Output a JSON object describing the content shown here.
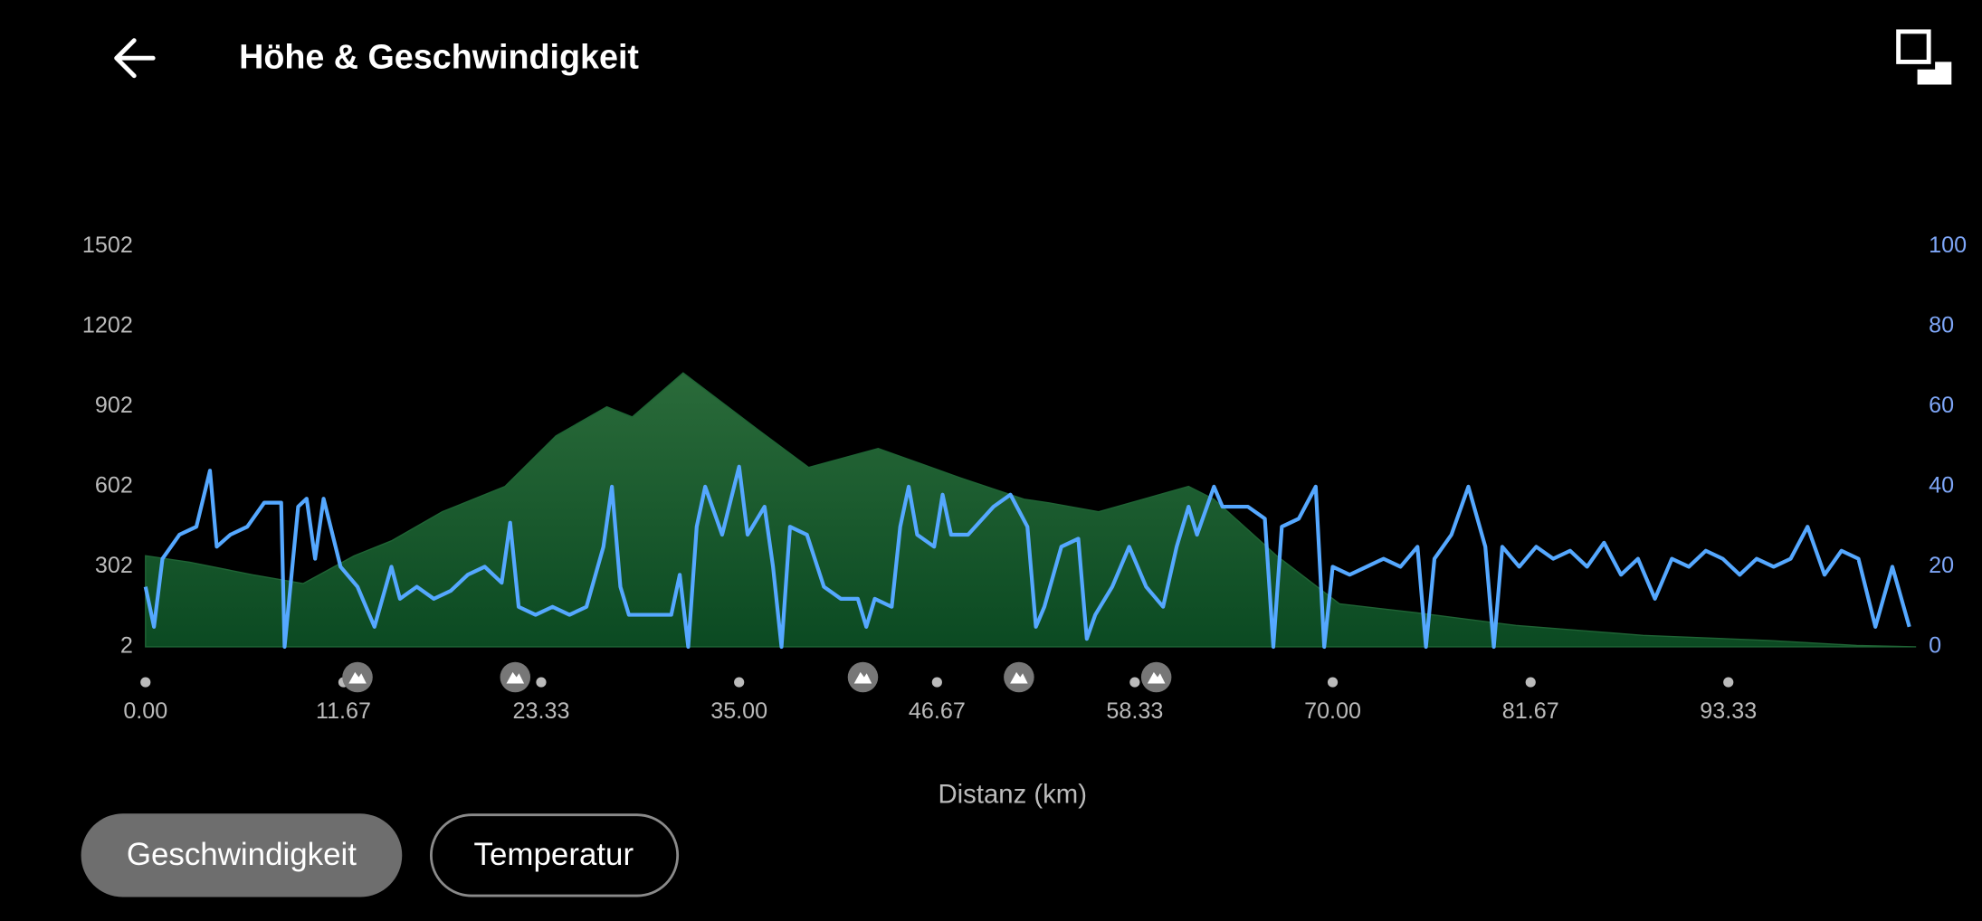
{
  "header": {
    "title": "Höhe & Geschwindigkeit"
  },
  "chart_data": {
    "type": "line",
    "x_label": "Distanz (km)",
    "xlim": [
      0,
      104.4
    ],
    "xticks": [
      {
        "value": 0,
        "label": "0.00"
      },
      11.67,
      23.33,
      {
        "value": 35,
        "label": "35.00"
      },
      46.67,
      58.33,
      {
        "value": 70,
        "label": "70.00"
      },
      81.67,
      93.33
    ],
    "ylim": [
      2,
      1502
    ],
    "yticks": [
      2,
      302,
      602,
      902,
      1202,
      1502
    ],
    "y2lim": [
      0,
      100
    ],
    "y2ticks": [
      0,
      20,
      40,
      60,
      80,
      100
    ],
    "markers": [
      12.5,
      21.8,
      42.3,
      51.5,
      59.6
    ],
    "series": [
      {
        "type": "area",
        "color": "#1f6435",
        "x": [
          0,
          2.6,
          6.3,
          9.3,
          12.3,
          14.5,
          17.5,
          21.2,
          24.2,
          27.2,
          28.7,
          31.7,
          36.1,
          39.1,
          43.2,
          48.0,
          51.8,
          53.3,
          56.2,
          61.5,
          63.0,
          66.7,
          70.4,
          74.9,
          80.8,
          88.3,
          95.7,
          100.9,
          104.4
        ],
        "values": [
          343,
          319,
          272,
          239,
          343,
          399,
          508,
          603,
          792,
          901,
          863,
          1028,
          816,
          674,
          745,
          636,
          555,
          541,
          508,
          603,
          555,
          343,
          163,
          130,
          82,
          45,
          26,
          7,
          2
        ]
      },
      {
        "type": "line",
        "color": "#55a8ff",
        "axis": "y2",
        "x": [
          0,
          0.5,
          1,
          2,
          3,
          3.8,
          4.2,
          5,
          6,
          7,
          8,
          8.2,
          9,
          9.5,
          10,
          10.5,
          11.5,
          12.5,
          13.5,
          14.5,
          15,
          16,
          17,
          18,
          19,
          20,
          21,
          21.5,
          22,
          23,
          24,
          25,
          26,
          27,
          27.5,
          28,
          28.5,
          29,
          31,
          31.5,
          32,
          32.5,
          33,
          34,
          35,
          35.5,
          36.5,
          37,
          37.5,
          38,
          39,
          40,
          41,
          42,
          42.5,
          43,
          44,
          44.5,
          45,
          45.5,
          46.5,
          47,
          47.5,
          48.5,
          50,
          51,
          52,
          52.5,
          53,
          54,
          55,
          55.5,
          56,
          57,
          58,
          59,
          60,
          60.8,
          61.5,
          62,
          63,
          63.5,
          65,
          66,
          66.5,
          67,
          68,
          69,
          69.5,
          70,
          71,
          72,
          73,
          74,
          75,
          75.5,
          76,
          77,
          78,
          79,
          79.5,
          80,
          81,
          82,
          83,
          84,
          85,
          86,
          87,
          88,
          89,
          90,
          91,
          92,
          93,
          94,
          95,
          96,
          97,
          98,
          99,
          100,
          101,
          102,
          103,
          104
        ],
        "values": [
          15,
          5,
          22,
          28,
          30,
          44,
          25,
          28,
          30,
          36,
          36,
          0,
          35,
          37,
          22,
          37,
          20,
          15,
          5,
          20,
          12,
          15,
          12,
          14,
          18,
          20,
          16,
          31,
          10,
          8,
          10,
          8,
          10,
          25,
          40,
          15,
          8,
          8,
          8,
          18,
          0,
          30,
          40,
          28,
          45,
          28,
          35,
          20,
          0,
          30,
          28,
          15,
          12,
          12,
          5,
          12,
          10,
          30,
          40,
          28,
          25,
          38,
          28,
          28,
          35,
          38,
          30,
          5,
          10,
          25,
          27,
          2,
          8,
          15,
          25,
          15,
          10,
          25,
          35,
          28,
          40,
          35,
          35,
          32,
          0,
          30,
          32,
          40,
          0,
          20,
          18,
          20,
          22,
          20,
          25,
          0,
          22,
          28,
          40,
          25,
          0,
          25,
          20,
          25,
          22,
          24,
          20,
          26,
          18,
          22,
          12,
          22,
          20,
          24,
          22,
          18,
          22,
          20,
          22,
          30,
          18,
          24,
          22,
          5,
          20,
          5
        ]
      }
    ]
  },
  "buttons": [
    "Geschwindigkeit",
    "Temperatur"
  ]
}
